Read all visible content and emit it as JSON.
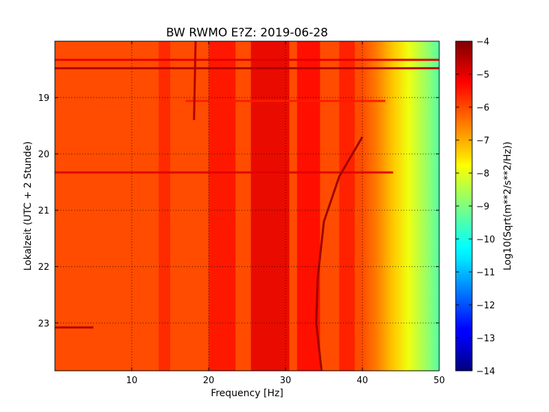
{
  "chart_data": {
    "type": "heatmap",
    "title": "BW RWMO E?Z: 2019-06-28",
    "xlabel": "Frequency [Hz]",
    "ylabel": "Lokalzeit (UTC + 2 Stunde)",
    "xlim": [
      0,
      50
    ],
    "ylim": [
      23.85,
      18.0
    ],
    "x_ticks": [
      10,
      20,
      30,
      40,
      50
    ],
    "y_ticks": [
      19,
      20,
      21,
      22,
      23
    ],
    "grid": true,
    "colorbar": {
      "label": "Log10(Sqrt(m**2/s**2/Hz))",
      "range": [
        -14,
        -4
      ],
      "ticks": [
        -4,
        -5,
        -6,
        -7,
        -8,
        -9,
        -10,
        -11,
        -12,
        -13,
        -14
      ],
      "colormap": "jet"
    },
    "background_level": -6.0,
    "bands": [
      {
        "x": [
          13.5,
          15.0
        ],
        "level": -5.6
      },
      {
        "x": [
          20.0,
          23.5
        ],
        "level": -5.4
      },
      {
        "x": [
          25.5,
          30.5
        ],
        "level": -5.0
      },
      {
        "x": [
          31.5,
          34.5
        ],
        "level": -5.3
      },
      {
        "x": [
          37.0,
          39.0
        ],
        "level": -5.5
      }
    ],
    "high_frequency_rolloff": [
      {
        "x": 40,
        "level": -6.0
      },
      {
        "x": 42,
        "level": -6.5
      },
      {
        "x": 44,
        "level": -7.2
      },
      {
        "x": 46,
        "level": -7.9
      },
      {
        "x": 48,
        "level": -8.6
      },
      {
        "x": 50,
        "level": -9.4
      }
    ],
    "horizontal_events": [
      {
        "time": 18.33,
        "x": [
          0,
          50
        ],
        "level": -5.0
      },
      {
        "time": 18.48,
        "x": [
          0,
          50
        ],
        "level": -4.5
      },
      {
        "time": 19.06,
        "x": [
          17,
          43
        ],
        "level": -5.5
      },
      {
        "time": 20.33,
        "x": [
          0,
          44
        ],
        "level": -5.0
      },
      {
        "time": 23.08,
        "x": [
          0,
          5
        ],
        "level": -4.5
      }
    ],
    "tremor_tracks": [
      {
        "name": "track-1",
        "points": [
          [
            18.3,
            18.0
          ],
          [
            18.1,
            19.4
          ]
        ],
        "level": -4.5
      },
      {
        "name": "track-2",
        "points": [
          [
            40.0,
            19.7
          ],
          [
            37.0,
            20.4
          ],
          [
            35.0,
            21.2
          ],
          [
            34.2,
            22.2
          ],
          [
            34.0,
            23.0
          ],
          [
            34.7,
            23.85
          ]
        ],
        "level": -4.3
      }
    ]
  }
}
